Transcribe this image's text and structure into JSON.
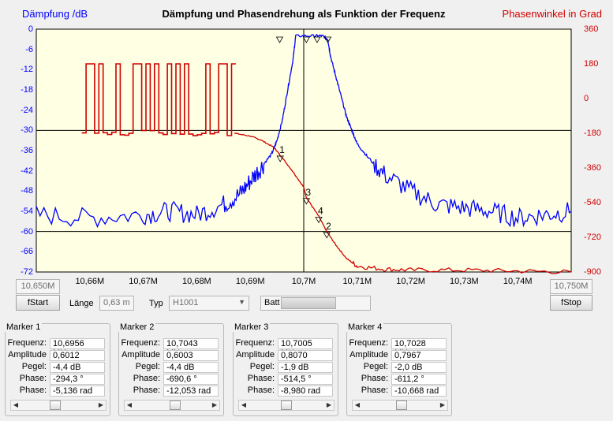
{
  "chart_data": {
    "type": "line",
    "title": "Dämpfung und Phasendrehung als Funktion der Frequenz",
    "ylabel_left": "Dämpfung /dB",
    "ylabel_right": "Phasenwinkel in Grad",
    "x_ticks": [
      "10,66M",
      "10,67M",
      "10,68M",
      "10,69M",
      "10,7M",
      "10,71M",
      "10,72M",
      "10,73M",
      "10,74M"
    ],
    "y_left_ticks": [
      "0",
      "-6",
      "-12",
      "-18",
      "-24",
      "-30",
      "-36",
      "-42",
      "-48",
      "-54",
      "-60",
      "-66",
      "-72"
    ],
    "y_right_ticks": [
      "360",
      "180",
      "0",
      "-180",
      "-360",
      "-540",
      "-720",
      "-900"
    ],
    "xlim_mhz": [
      10.65,
      10.75
    ],
    "ylim_db": [
      -72,
      0
    ],
    "ylim_deg": [
      -900,
      360
    ],
    "series": [
      {
        "color": "#0000ff",
        "axis": "left",
        "x": [
          10.65,
          10.66,
          10.67,
          10.675,
          10.68,
          10.685,
          10.688,
          10.69,
          10.692,
          10.694,
          10.695,
          10.696,
          10.697,
          10.698,
          10.6985,
          10.702,
          10.7035,
          10.7045,
          10.705,
          10.706,
          10.707,
          10.708,
          10.709,
          10.71,
          10.712,
          10.715,
          10.72,
          10.725,
          10.73,
          10.735,
          10.74,
          10.745,
          10.75
        ],
        "values": [
          -55,
          -56,
          -55,
          -54,
          -55,
          -52,
          -49,
          -45,
          -41,
          -37,
          -33,
          -27,
          -18,
          -9,
          -2,
          -2,
          -2,
          -3,
          -8,
          -14,
          -20,
          -26,
          -30,
          -34,
          -38,
          -43,
          -48,
          -52,
          -53,
          -54,
          -56,
          -55,
          -54
        ]
      },
      {
        "color": "#d00000",
        "axis": "right",
        "x": [
          10.65,
          10.6585,
          10.66,
          10.67,
          10.68,
          10.687,
          10.69,
          10.692,
          10.6945,
          10.6956,
          10.698,
          10.7,
          10.7005,
          10.7028,
          10.7043,
          10.706,
          10.708,
          10.71,
          10.715,
          10.72,
          10.73,
          10.74,
          10.75
        ],
        "values": [
          -180,
          -180,
          -180,
          -180,
          -180,
          -180,
          -195,
          -215,
          -255,
          -294,
          -380,
          -460,
          -514,
          -611,
          -690,
          -760,
          -830,
          -870,
          -885,
          -890,
          -890,
          -895,
          -900
        ]
      }
    ],
    "markers": [
      {
        "label": "1",
        "freq_mhz": 10.6956,
        "phase_deg": -294.3
      },
      {
        "label": "2",
        "freq_mhz": 10.7043,
        "phase_deg": -690.6
      },
      {
        "label": "3",
        "freq_mhz": 10.7005,
        "phase_deg": -514.5
      },
      {
        "label": "4",
        "freq_mhz": 10.7028,
        "phase_deg": -611.2
      }
    ]
  },
  "controls": {
    "fstart_value": "10,650M",
    "fstart_label": "fStart",
    "fstop_value": "10,750M",
    "fstop_label": "fStop",
    "laenge_label": "Länge",
    "laenge_value": "0,63 m",
    "typ_label": "Typ",
    "typ_value": "H1001",
    "batt_label": "Batt"
  },
  "marker_panels": [
    {
      "title": "Marker 1",
      "rows": [
        {
          "k": "Frequenz:",
          "v": "10,6956 MHz"
        },
        {
          "k": "Amplitude",
          "v": "0,6012"
        },
        {
          "k": "Pegel:",
          "v": "-4,4 dB"
        },
        {
          "k": "Phase:",
          "v": "-294,3 °"
        },
        {
          "k": "Phase:",
          "v": "-5,136 rad"
        }
      ],
      "thumb": 0.45
    },
    {
      "title": "Marker 2",
      "rows": [
        {
          "k": "Frequenz:",
          "v": "10,7043 MHz"
        },
        {
          "k": "Amplitude",
          "v": "0,6003"
        },
        {
          "k": "Pegel:",
          "v": "-4,4 dB"
        },
        {
          "k": "Phase:",
          "v": "-690,6 °"
        },
        {
          "k": "Phase:",
          "v": "-12,053 rad"
        }
      ],
      "thumb": 0.55
    },
    {
      "title": "Marker 3",
      "rows": [
        {
          "k": "Frequenz:",
          "v": "10,7005 MHz"
        },
        {
          "k": "Amplitude",
          "v": "0,8070"
        },
        {
          "k": "Pegel:",
          "v": "-1,9 dB"
        },
        {
          "k": "Phase:",
          "v": "-514,5 °"
        },
        {
          "k": "Phase:",
          "v": "-8,980 rad"
        }
      ],
      "thumb": 0.5
    },
    {
      "title": "Marker 4",
      "rows": [
        {
          "k": "Frequenz:",
          "v": "10,7028 MHz"
        },
        {
          "k": "Amplitude",
          "v": "0,7967"
        },
        {
          "k": "Pegel:",
          "v": "-2,0 dB"
        },
        {
          "k": "Phase:",
          "v": "-611,2 °"
        },
        {
          "k": "Phase:",
          "v": "-10,668 rad"
        }
      ],
      "thumb": 0.52
    }
  ]
}
